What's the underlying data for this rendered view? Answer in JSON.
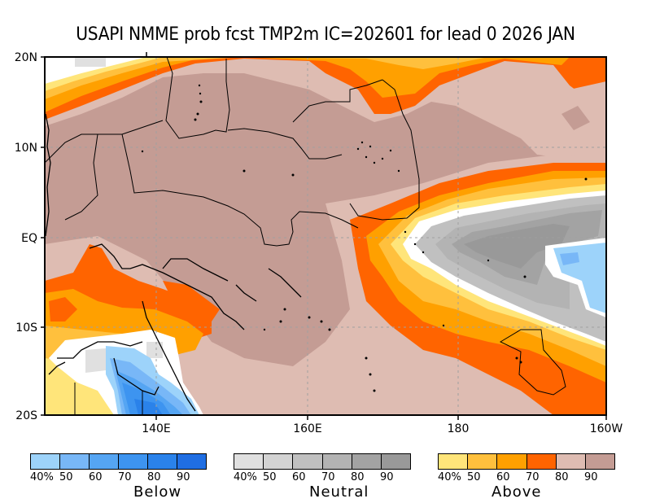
{
  "title": "USAPI NMME prob fcst TMP2m IC=202601 for lead 0 2026 JAN",
  "map": {
    "variable": "TMP2m",
    "model": "USAPI NMME",
    "initial_condition": "202601",
    "lead": "0",
    "valid": "2026 JAN",
    "extent": {
      "lon_min": "125E",
      "lon_max": "160W",
      "lat_min": "20S",
      "lat_max": "20N"
    },
    "lat_labels": [
      "20N",
      "10N",
      "EQ",
      "10S",
      "20S"
    ],
    "lon_labels": [
      "140E",
      "160E",
      "180",
      "160W"
    ],
    "regions": [
      {
        "name": "north-pacific-band",
        "category": "Above",
        "probability": "50-70%"
      },
      {
        "name": "western-micronesia",
        "category": "Above",
        "probability": "90%"
      },
      {
        "name": "central-equatorial-pacific",
        "category": "Neutral",
        "probability": "60-90%"
      },
      {
        "name": "northern-australia",
        "category": "Below",
        "probability": "40-80%"
      },
      {
        "name": "east-equatorial-pocket",
        "category": "Below",
        "probability": "40-50%"
      },
      {
        "name": "south-pacific-band",
        "category": "Above",
        "probability": "50-70%"
      }
    ]
  },
  "legends": [
    {
      "name": "Below",
      "ticks": [
        "40%",
        "50",
        "60",
        "70",
        "80",
        "90"
      ],
      "colors": [
        "#9dd3fa",
        "#78b7f7",
        "#55a5f3",
        "#3d94f0",
        "#2a82ea",
        "#1f6ee3"
      ]
    },
    {
      "name": "Neutral",
      "ticks": [
        "40%",
        "50",
        "60",
        "70",
        "80",
        "90"
      ],
      "colors": [
        "#e0e0e0",
        "#d3d3d3",
        "#c0c0c0",
        "#b3b3b3",
        "#a3a3a3",
        "#999999"
      ]
    },
    {
      "name": "Above",
      "ticks": [
        "40%",
        "50",
        "60",
        "70",
        "80",
        "90"
      ],
      "colors": [
        "#ffe57a",
        "#ffc03d",
        "#ffa000",
        "#ff6400",
        "#debcb2",
        "#c49c94"
      ]
    }
  ]
}
